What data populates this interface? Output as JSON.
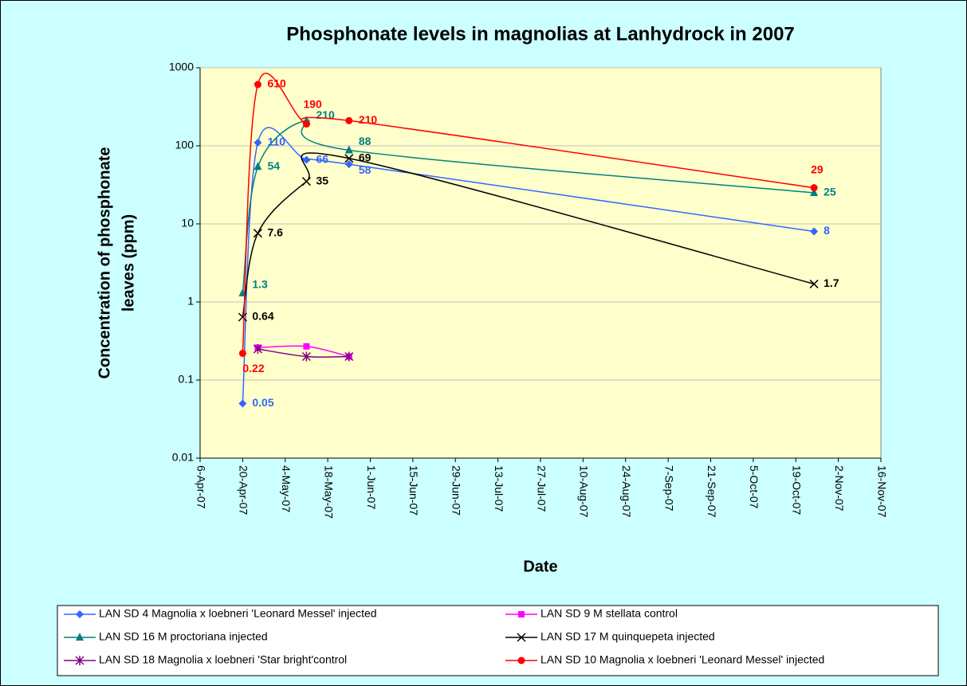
{
  "chart_data": {
    "type": "line",
    "title": "Phosphonate levels in magnolias at Lanhydrock in 2007",
    "xlabel": "Date",
    "ylabel": [
      "Concentration of phosphonate",
      "leaves (ppm)"
    ],
    "log_y": true,
    "grid": true,
    "smooth": true,
    "legend": "bottom",
    "x": [
      "2007-04-20",
      "2007-04-25",
      "2007-05-11",
      "2007-05-25",
      "2007-10-25"
    ],
    "xlim": [
      "2007-04-06",
      "2007-11-16"
    ],
    "xticks": [
      {
        "value": "2007-04-06",
        "label": "6-Apr-07"
      },
      {
        "value": "2007-04-20",
        "label": "20-Apr-07"
      },
      {
        "value": "2007-05-04",
        "label": "4-May-07"
      },
      {
        "value": "2007-05-18",
        "label": "18-May-07"
      },
      {
        "value": "2007-06-01",
        "label": "1-Jun-07"
      },
      {
        "value": "2007-06-15",
        "label": "15-Jun-07"
      },
      {
        "value": "2007-06-29",
        "label": "29-Jun-07"
      },
      {
        "value": "2007-07-13",
        "label": "13-Jul-07"
      },
      {
        "value": "2007-07-27",
        "label": "27-Jul-07"
      },
      {
        "value": "2007-08-10",
        "label": "10-Aug-07"
      },
      {
        "value": "2007-08-24",
        "label": "24-Aug-07"
      },
      {
        "value": "2007-09-07",
        "label": "7-Sep-07"
      },
      {
        "value": "2007-09-21",
        "label": "21-Sep-07"
      },
      {
        "value": "2007-10-05",
        "label": "5-Oct-07"
      },
      {
        "value": "2007-10-19",
        "label": "19-Oct-07"
      },
      {
        "value": "2007-11-02",
        "label": "2-Nov-07"
      },
      {
        "value": "2007-11-16",
        "label": "16-Nov-07"
      }
    ],
    "ylim": [
      0.01,
      1000
    ],
    "yticks": [
      0.01,
      0.1,
      1,
      10,
      100,
      1000
    ],
    "series": [
      {
        "name": "LAN SD 4 Magnolia x loebneri 'Leonard Messel' injected",
        "color": "#3366ff",
        "marker": "diamond",
        "data_labels": true,
        "values": [
          0.05,
          110,
          66,
          58,
          8
        ]
      },
      {
        "name": "LAN SD 9 M stellata control",
        "color": "#ff00ff",
        "marker": "square",
        "data_labels": false,
        "values": [
          null,
          0.26,
          0.27,
          0.2,
          null
        ]
      },
      {
        "name": "LAN SD 16 M proctoriana injected",
        "color": "#008080",
        "marker": "triangle",
        "data_labels": true,
        "values": [
          1.3,
          54,
          210,
          88,
          25
        ]
      },
      {
        "name": "LAN SD 17 M quinquepeta injected",
        "color": "#000000",
        "marker": "x",
        "data_labels": true,
        "values": [
          0.64,
          7.6,
          35,
          69,
          1.7
        ]
      },
      {
        "name": "LAN SD 18 Magnolia x loebneri 'Star bright'control",
        "color": "#800080",
        "marker": "star",
        "data_labels": false,
        "values": [
          null,
          0.25,
          0.2,
          0.2,
          null
        ]
      },
      {
        "name": "LAN SD 10 Magnolia x loebneri 'Leonard Messel' injected",
        "color": "#ff0000",
        "marker": "circle",
        "data_labels": true,
        "values": [
          0.22,
          610,
          190,
          210,
          29
        ]
      }
    ]
  }
}
